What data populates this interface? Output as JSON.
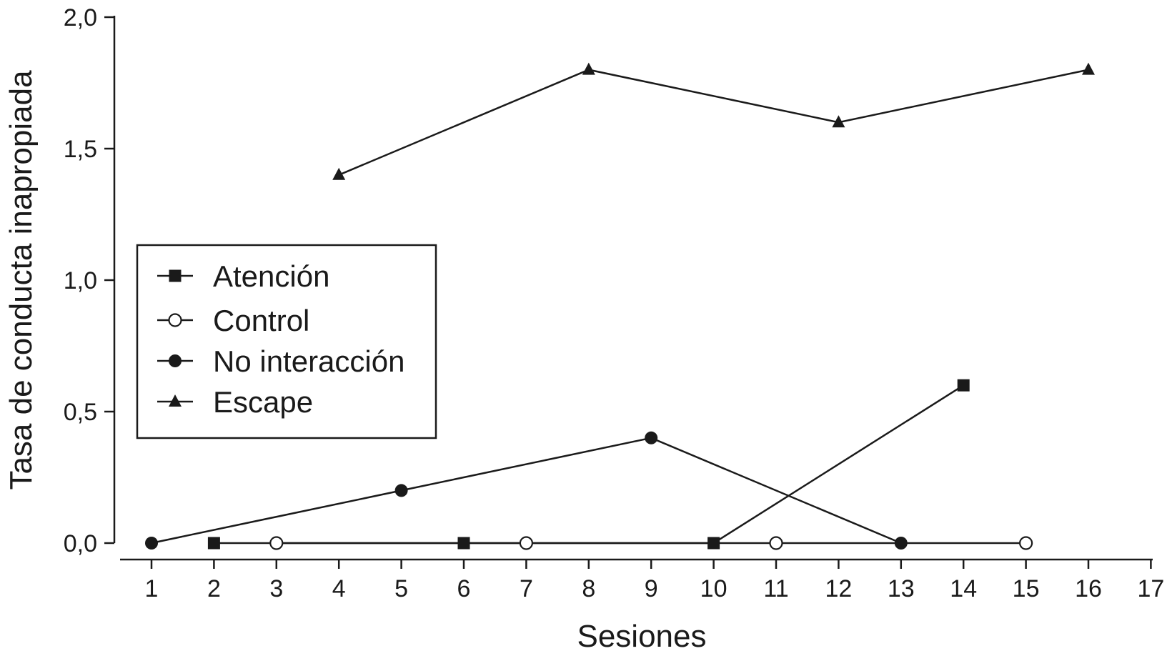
{
  "chart_data": {
    "type": "line",
    "title": "",
    "xlabel": "Sesiones",
    "ylabel": "Tasa de conducta inapropiada",
    "xlim": [
      0.5,
      17
    ],
    "ylim": [
      0,
      2.0
    ],
    "x_ticks": [
      "1",
      "2",
      "3",
      "4",
      "5",
      "6",
      "7",
      "8",
      "9",
      "10",
      "11",
      "12",
      "13",
      "14",
      "15",
      "16",
      "17"
    ],
    "y_ticks": [
      "0,0",
      "0,5",
      "1,0",
      "1,5",
      "2,0"
    ],
    "y_tick_values": [
      0,
      0.5,
      1.0,
      1.5,
      2.0
    ],
    "grid": false,
    "legend_position": "center-left",
    "series": [
      {
        "name": "Atención",
        "marker": "square-filled",
        "x": [
          2,
          6,
          10,
          14
        ],
        "y": [
          0,
          0,
          0,
          0.6
        ]
      },
      {
        "name": "Control",
        "marker": "circle-open",
        "x": [
          3,
          7,
          11,
          15
        ],
        "y": [
          0,
          0,
          0,
          0
        ]
      },
      {
        "name": "No interacción",
        "marker": "circle-filled",
        "x": [
          1,
          5,
          9,
          13
        ],
        "y": [
          0,
          0.2,
          0.4,
          0
        ]
      },
      {
        "name": "Escape",
        "marker": "triangle-filled",
        "x": [
          4,
          8,
          12,
          16
        ],
        "y": [
          1.4,
          1.8,
          1.6,
          1.8
        ]
      }
    ],
    "colors": {
      "ink": "#1a1a1a",
      "background": "#ffffff"
    }
  }
}
